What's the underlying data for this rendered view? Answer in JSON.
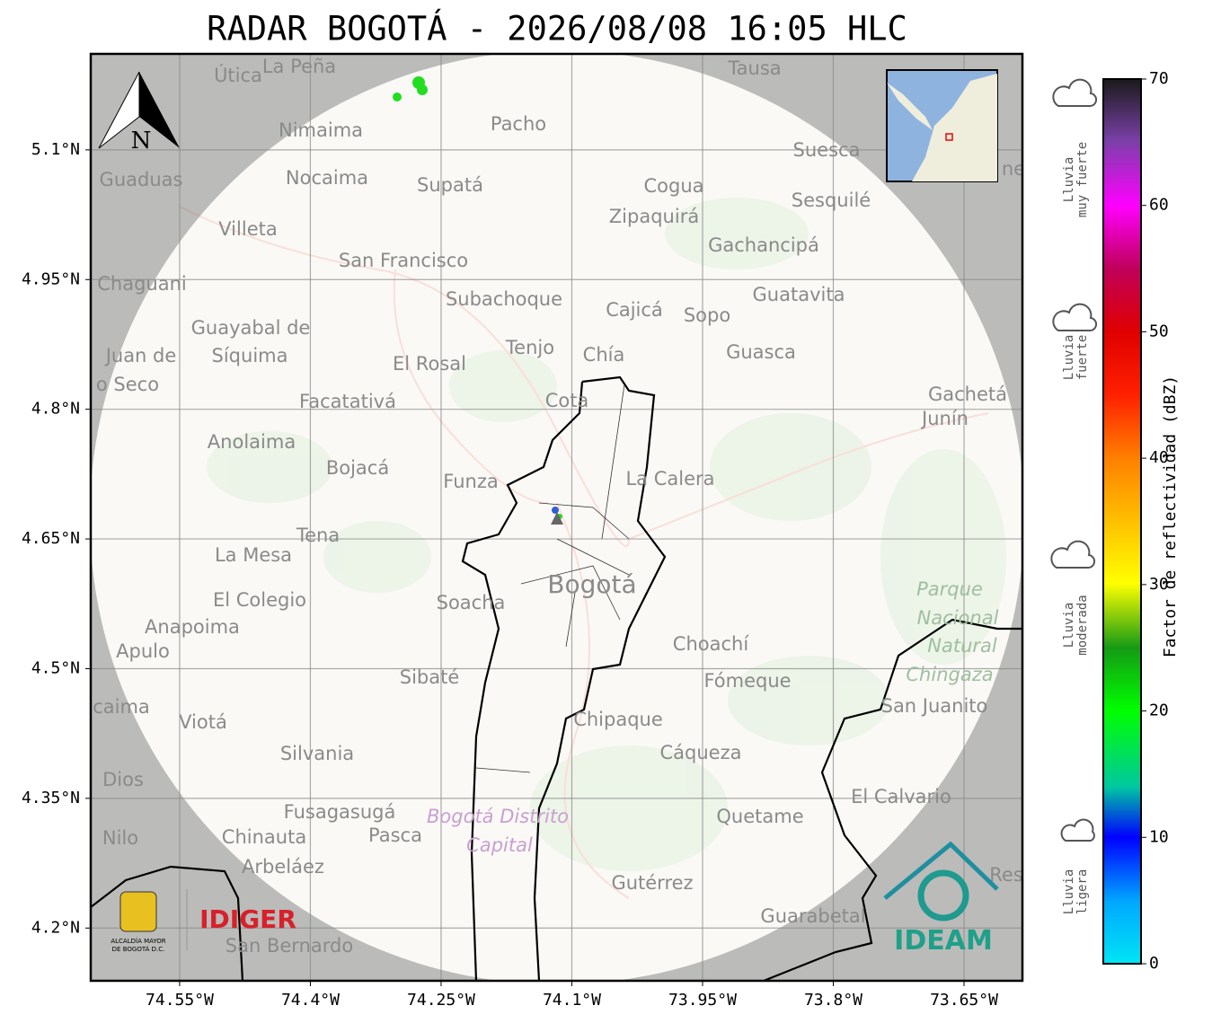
{
  "title": "RADAR BOGOTÁ - 2026/08/08 16:05 HLC",
  "map": {
    "xlim": [
      -74.652,
      -73.583
    ],
    "ylim": [
      4.139,
      5.211
    ],
    "xticks": [
      {
        "value": -74.55,
        "label": "74.55°W"
      },
      {
        "value": -74.4,
        "label": "74.4°W"
      },
      {
        "value": -74.25,
        "label": "74.25°W"
      },
      {
        "value": -74.1,
        "label": "74.1°W"
      },
      {
        "value": -73.95,
        "label": "73.95°W"
      },
      {
        "value": -73.8,
        "label": "73.8°W"
      },
      {
        "value": -73.65,
        "label": "73.65°W"
      }
    ],
    "yticks": [
      {
        "value": 5.1,
        "label": "5.1°N"
      },
      {
        "value": 4.95,
        "label": "4.95°N"
      },
      {
        "value": 4.8,
        "label": "4.8°N"
      },
      {
        "value": 4.65,
        "label": "4.65°N"
      },
      {
        "value": 4.5,
        "label": "4.5°N"
      },
      {
        "value": 4.35,
        "label": "4.35°N"
      },
      {
        "value": 4.2,
        "label": "4.2°N"
      }
    ],
    "north": "N",
    "places": [
      "La Peña",
      "Útica",
      "Tausa",
      "Pacho",
      "Nimaima",
      "Guaduas",
      "Nocaima",
      "Supatá",
      "Cogua",
      "Suesca",
      "Sesquilé",
      "Zipaquirá",
      "Villeta",
      "Gachancipá",
      "San Francisco",
      "Chaguani",
      "Subachoque",
      "Guatavita",
      "Cajicá",
      "Sopo",
      "Guayabal de",
      "Síquima",
      "Juan de",
      "Tenjo",
      "Chía",
      "Guasca",
      "El Rosal",
      "o Seco",
      "Facatativá",
      "Cota",
      "Gachetá",
      "Junín",
      "Anolaima",
      "Bojacá",
      "Funza",
      "La Calera",
      "Tena",
      "La Mesa",
      "Bogotá",
      "El Colegio",
      "Soacha",
      "Anapoima",
      "Apulo",
      "Choachí",
      "Sibaté",
      "Fómeque",
      "San Juanito",
      "caima",
      "Viotá",
      "Chipaque",
      "Silvania",
      "Cáqueza",
      "Dios",
      "El Calvario",
      "Fusagasugá",
      "Quetame",
      "Chinauta",
      "Pasca",
      "Nilo",
      "Arbeláez",
      "Gutérrez",
      "Res",
      "Guarabetal",
      "San Bernardo",
      "ne"
    ],
    "parks": [
      "Parque",
      "Nacional",
      "Natural",
      "Chingaza",
      "Bogotá Distrito",
      "Capital"
    ]
  },
  "colorbar": {
    "label": "Factor de reflectividad (dBZ)",
    "lim": [
      0,
      70
    ],
    "ticks": [
      0,
      10,
      20,
      30,
      40,
      50,
      60,
      70
    ],
    "categories": [
      [
        "Lluvia",
        "muy fuerte"
      ],
      [
        "Lluvia",
        "fuerte"
      ],
      [
        "Lluvia",
        "moderada"
      ],
      [
        "Lluvia",
        "ligera"
      ]
    ]
  },
  "logos": {
    "alcaldia": [
      "ALCALDÍA MAYOR",
      "DE BOGOTÁ D.C."
    ],
    "idiger": "IDIGER",
    "ideam": "IDEAM"
  }
}
